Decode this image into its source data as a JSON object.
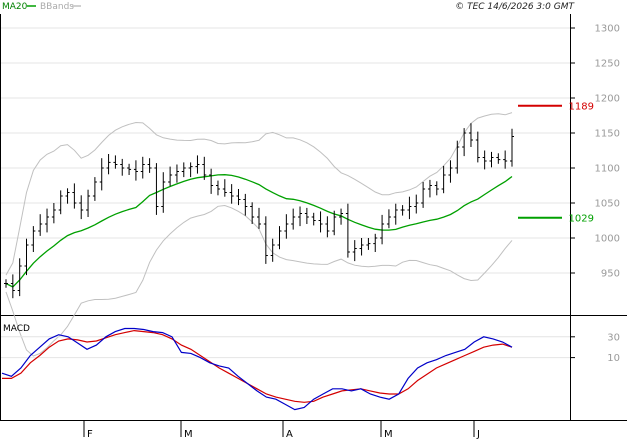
{
  "chart_data": [
    {
      "type": "ohlc",
      "legend": {
        "ma": "MA20",
        "bands": "BBands"
      },
      "copyright": "© TEC 14/6/2026 3:0 GMT",
      "y_ticks": [
        "1300",
        "1250",
        "1200",
        "1150",
        "1100",
        "1050",
        "1000",
        "950"
      ],
      "ylim": [
        890,
        1320
      ],
      "x_ticks": [
        "F",
        "M",
        "A",
        "M",
        "J"
      ],
      "levels": [
        {
          "value": 1189,
          "label": "1189",
          "color": "#d40000"
        },
        {
          "value": 1029,
          "label": "1029",
          "color": "#00a000"
        }
      ],
      "colors": {
        "price": "#000000",
        "ma": "#00a000",
        "bands": "#c0c0c0",
        "grid": "#e4e4e4"
      },
      "close_series": [
        935,
        925,
        960,
        990,
        1010,
        1020,
        1030,
        1040,
        1060,
        1065,
        1050,
        1040,
        1060,
        1080,
        1100,
        1108,
        1105,
        1100,
        1098,
        1095,
        1105,
        1100,
        1045,
        1080,
        1090,
        1095,
        1100,
        1102,
        1105,
        1090,
        1075,
        1070,
        1065,
        1060,
        1055,
        1045,
        1030,
        1020,
        975,
        990,
        1010,
        1020,
        1030,
        1035,
        1030,
        1025,
        1020,
        1010,
        1030,
        1035,
        980,
        985,
        990,
        992,
        1000,
        1020,
        1030,
        1040,
        1040,
        1045,
        1050,
        1070,
        1075,
        1070,
        1090,
        1100,
        1130,
        1150,
        1140,
        1115,
        1110,
        1115,
        1112,
        1110,
        1145
      ]
    },
    {
      "type": "line",
      "title": "MACD",
      "y_ticks": [
        "30",
        "10"
      ],
      "ylim": [
        -50,
        50
      ],
      "colors": {
        "macd": "#0000c8",
        "signal": "#d40000"
      },
      "macd": [
        -5,
        -8,
        0,
        12,
        20,
        28,
        32,
        30,
        24,
        18,
        22,
        30,
        35,
        38,
        38,
        37,
        35,
        34,
        30,
        15,
        14,
        10,
        5,
        2,
        0,
        -8,
        -15,
        -22,
        -28,
        -30,
        -35,
        -40,
        -38,
        -30,
        -25,
        -20,
        -20,
        -22,
        -20,
        -25,
        -28,
        -30,
        -25,
        -10,
        0,
        5,
        8,
        12,
        15,
        18,
        25,
        30,
        28,
        25,
        20
      ],
      "signal": [
        -10,
        -10,
        -5,
        5,
        12,
        20,
        26,
        28,
        27,
        25,
        26,
        29,
        32,
        34,
        36,
        35,
        34,
        32,
        28,
        22,
        18,
        12,
        6,
        0,
        -5,
        -10,
        -15,
        -20,
        -25,
        -28,
        -30,
        -32,
        -33,
        -32,
        -28,
        -25,
        -22,
        -21,
        -20,
        -22,
        -24,
        -25,
        -25,
        -20,
        -12,
        -6,
        0,
        4,
        8,
        12,
        16,
        20,
        22,
        23,
        20
      ]
    }
  ]
}
